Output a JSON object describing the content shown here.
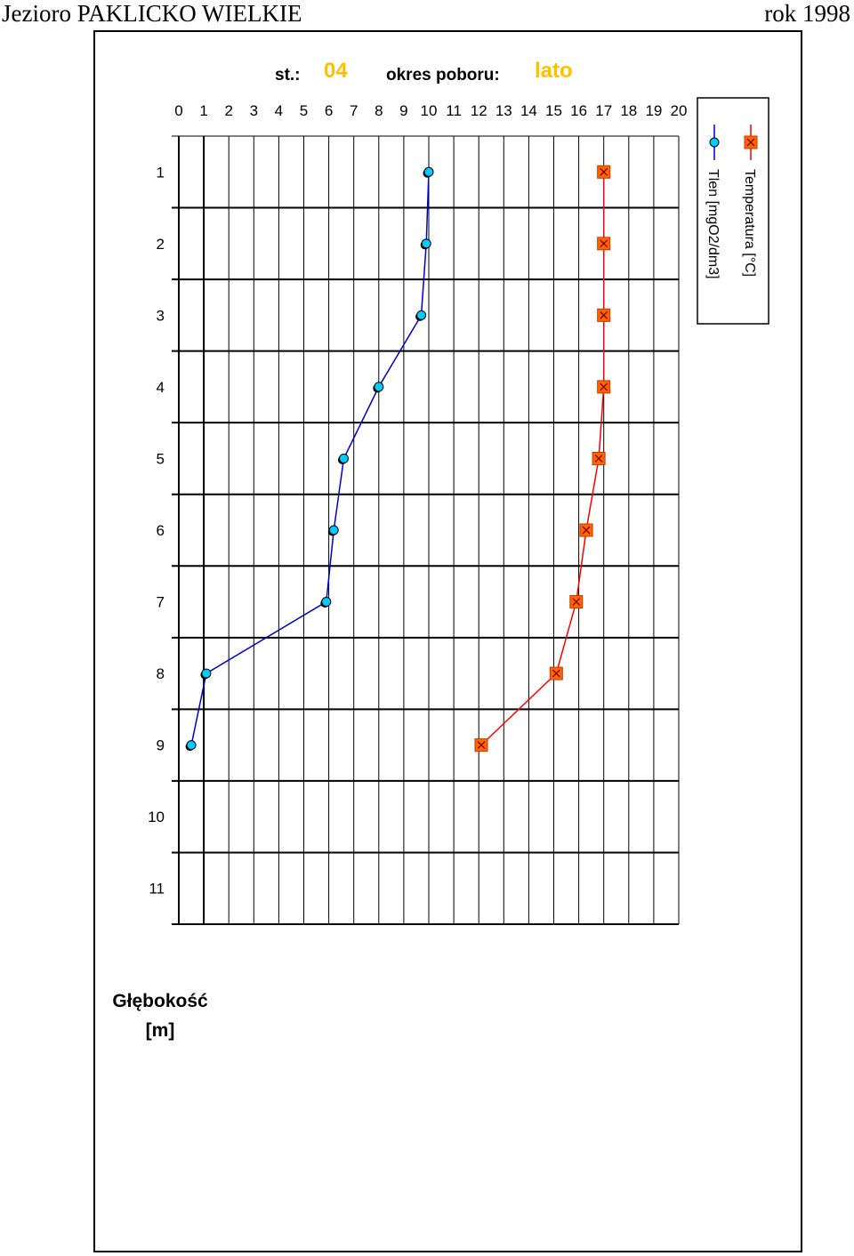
{
  "document": {
    "title": "Jezioro PAKLICKO WIELKIE",
    "year": "rok 1998"
  },
  "colors": {
    "station_value": "#ffc000",
    "oxygen_line": "#0000cc",
    "oxygen_marker": "#00ccff",
    "temperature_line": "#ff0000",
    "temperature_marker": "#ff6600",
    "grid": "#000000"
  },
  "chart_data": {
    "type": "line",
    "station_label": "st.:",
    "station_value": "04",
    "period_label": "okres poboru:",
    "period_value": "lato",
    "ylabel_line1": "Głębokość",
    "ylabel_line2": "[m]",
    "x_axis": {
      "position": "top",
      "range": [
        0,
        20
      ],
      "ticks": [
        0,
        1,
        2,
        3,
        4,
        5,
        6,
        7,
        8,
        9,
        10,
        11,
        12,
        13,
        14,
        15,
        16,
        17,
        18,
        19,
        20
      ]
    },
    "y_axis": {
      "inverted": true,
      "range": [
        0.5,
        11.5
      ],
      "ticks": [
        1,
        2,
        3,
        4,
        5,
        6,
        7,
        8,
        9,
        10,
        11
      ]
    },
    "grid": true,
    "legend_placement": "right",
    "series": [
      {
        "name": "Temperatura [°C]",
        "color": "#ff0000",
        "marker": "square-x",
        "depth": [
          1,
          2,
          3,
          4,
          5,
          6,
          7,
          8,
          9
        ],
        "values": [
          17,
          17,
          17,
          17,
          16.8,
          16.3,
          15.9,
          15.1,
          12.1
        ]
      },
      {
        "name": "Tlen [mgO2/dm3]",
        "color": "#0000cc",
        "marker": "circle",
        "depth": [
          1,
          2,
          3,
          4,
          5,
          6,
          7,
          8,
          9
        ],
        "values": [
          10,
          9.9,
          9.7,
          8,
          6.6,
          6.2,
          5.9,
          1.1,
          0.5
        ]
      }
    ]
  }
}
